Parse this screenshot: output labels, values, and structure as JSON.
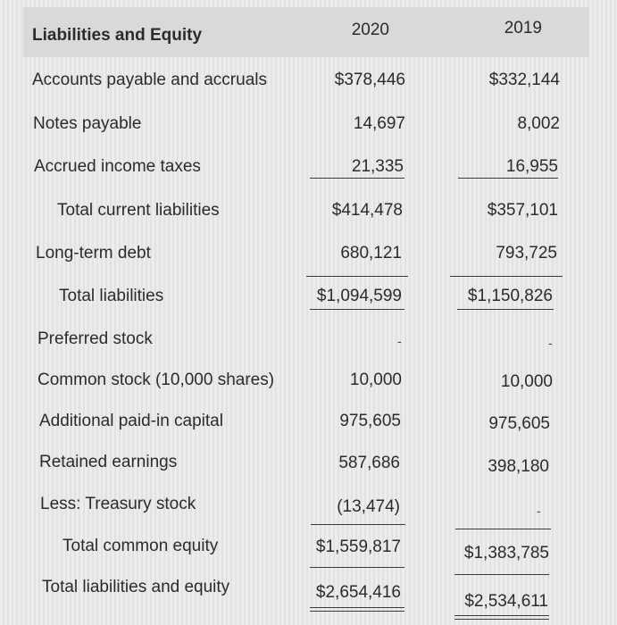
{
  "header": {
    "title": "Liabilities and Equity",
    "year_2020": "2020",
    "year_2019": "2019"
  },
  "rows": {
    "accounts_payable": {
      "label": "Accounts payable and accruals",
      "v2020": "$378,446",
      "v2019": "$332,144"
    },
    "notes_payable": {
      "label": "Notes payable",
      "v2020": "14,697",
      "v2019": "8,002"
    },
    "accrued_taxes": {
      "label": "Accrued income taxes",
      "v2020": "21,335",
      "v2019": "16,955"
    },
    "total_current": {
      "label": "Total current liabilities",
      "v2020": "$414,478",
      "v2019": "$357,101"
    },
    "long_term_debt": {
      "label": "Long-term debt",
      "v2020": "680,121",
      "v2019": "793,725"
    },
    "total_liabilities": {
      "label": "Total liabilities",
      "v2020": "$1,094,599",
      "v2019": "$1,150,826"
    },
    "preferred_stock": {
      "label": "Preferred stock",
      "v2020": "-",
      "v2019": "-"
    },
    "common_stock": {
      "label": "Common stock (10,000 shares)",
      "v2020": "10,000",
      "v2019": "10,000"
    },
    "apic": {
      "label": "Additional paid-in capital",
      "v2020": "975,605",
      "v2019": "975,605"
    },
    "retained_earnings": {
      "label": "Retained earnings",
      "v2020": "587,686",
      "v2019": "398,180"
    },
    "treasury_stock": {
      "label": "Less: Treasury stock",
      "v2020": "(13,474)",
      "v2019": "-"
    },
    "total_common_equity": {
      "label": "Total common equity",
      "v2020": "$1,559,817",
      "v2019": "$1,383,785"
    },
    "total_liab_equity": {
      "label": "Total liabilities and equity",
      "v2020": "$2,654,416",
      "v2019": "$2,534,611"
    }
  }
}
